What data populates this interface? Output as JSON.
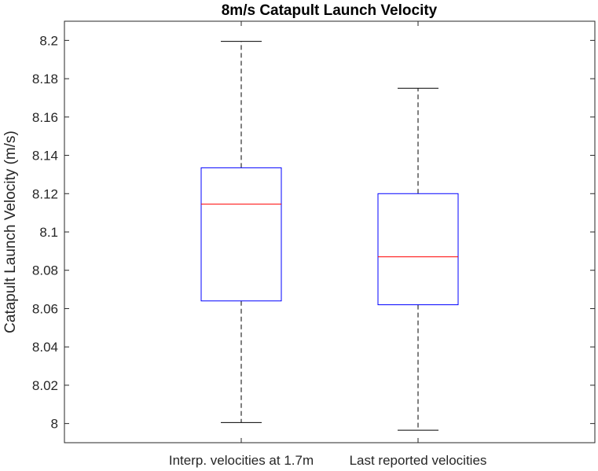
{
  "chart_data": {
    "type": "box",
    "title": "8m/s Catapult Launch Velocity",
    "xlabel": "",
    "ylabel": "Catapult Launch Velocity (m/s)",
    "ylim": [
      7.99,
      8.21
    ],
    "yticks": [
      8,
      8.02,
      8.04,
      8.06,
      8.08,
      8.1,
      8.12,
      8.14,
      8.16,
      8.18,
      8.2
    ],
    "ytick_labels": [
      "8",
      "8.02",
      "8.04",
      "8.06",
      "8.08",
      "8.1",
      "8.12",
      "8.14",
      "8.16",
      "8.18",
      "8.2"
    ],
    "categories": [
      "Interp. velocities at 1.7m",
      "Last reported velocities"
    ],
    "boxes": [
      {
        "whisker_low": 8.0005,
        "q1": 8.064,
        "median": 8.1145,
        "q3": 8.1335,
        "whisker_high": 8.1995
      },
      {
        "whisker_low": 7.9965,
        "q1": 8.062,
        "median": 8.087,
        "q3": 8.12,
        "whisker_high": 8.175
      }
    ],
    "colors": {
      "box": "#0000ff",
      "median": "#ff0000",
      "whisker": "#000000",
      "axes": "#262626"
    },
    "grid": false
  }
}
